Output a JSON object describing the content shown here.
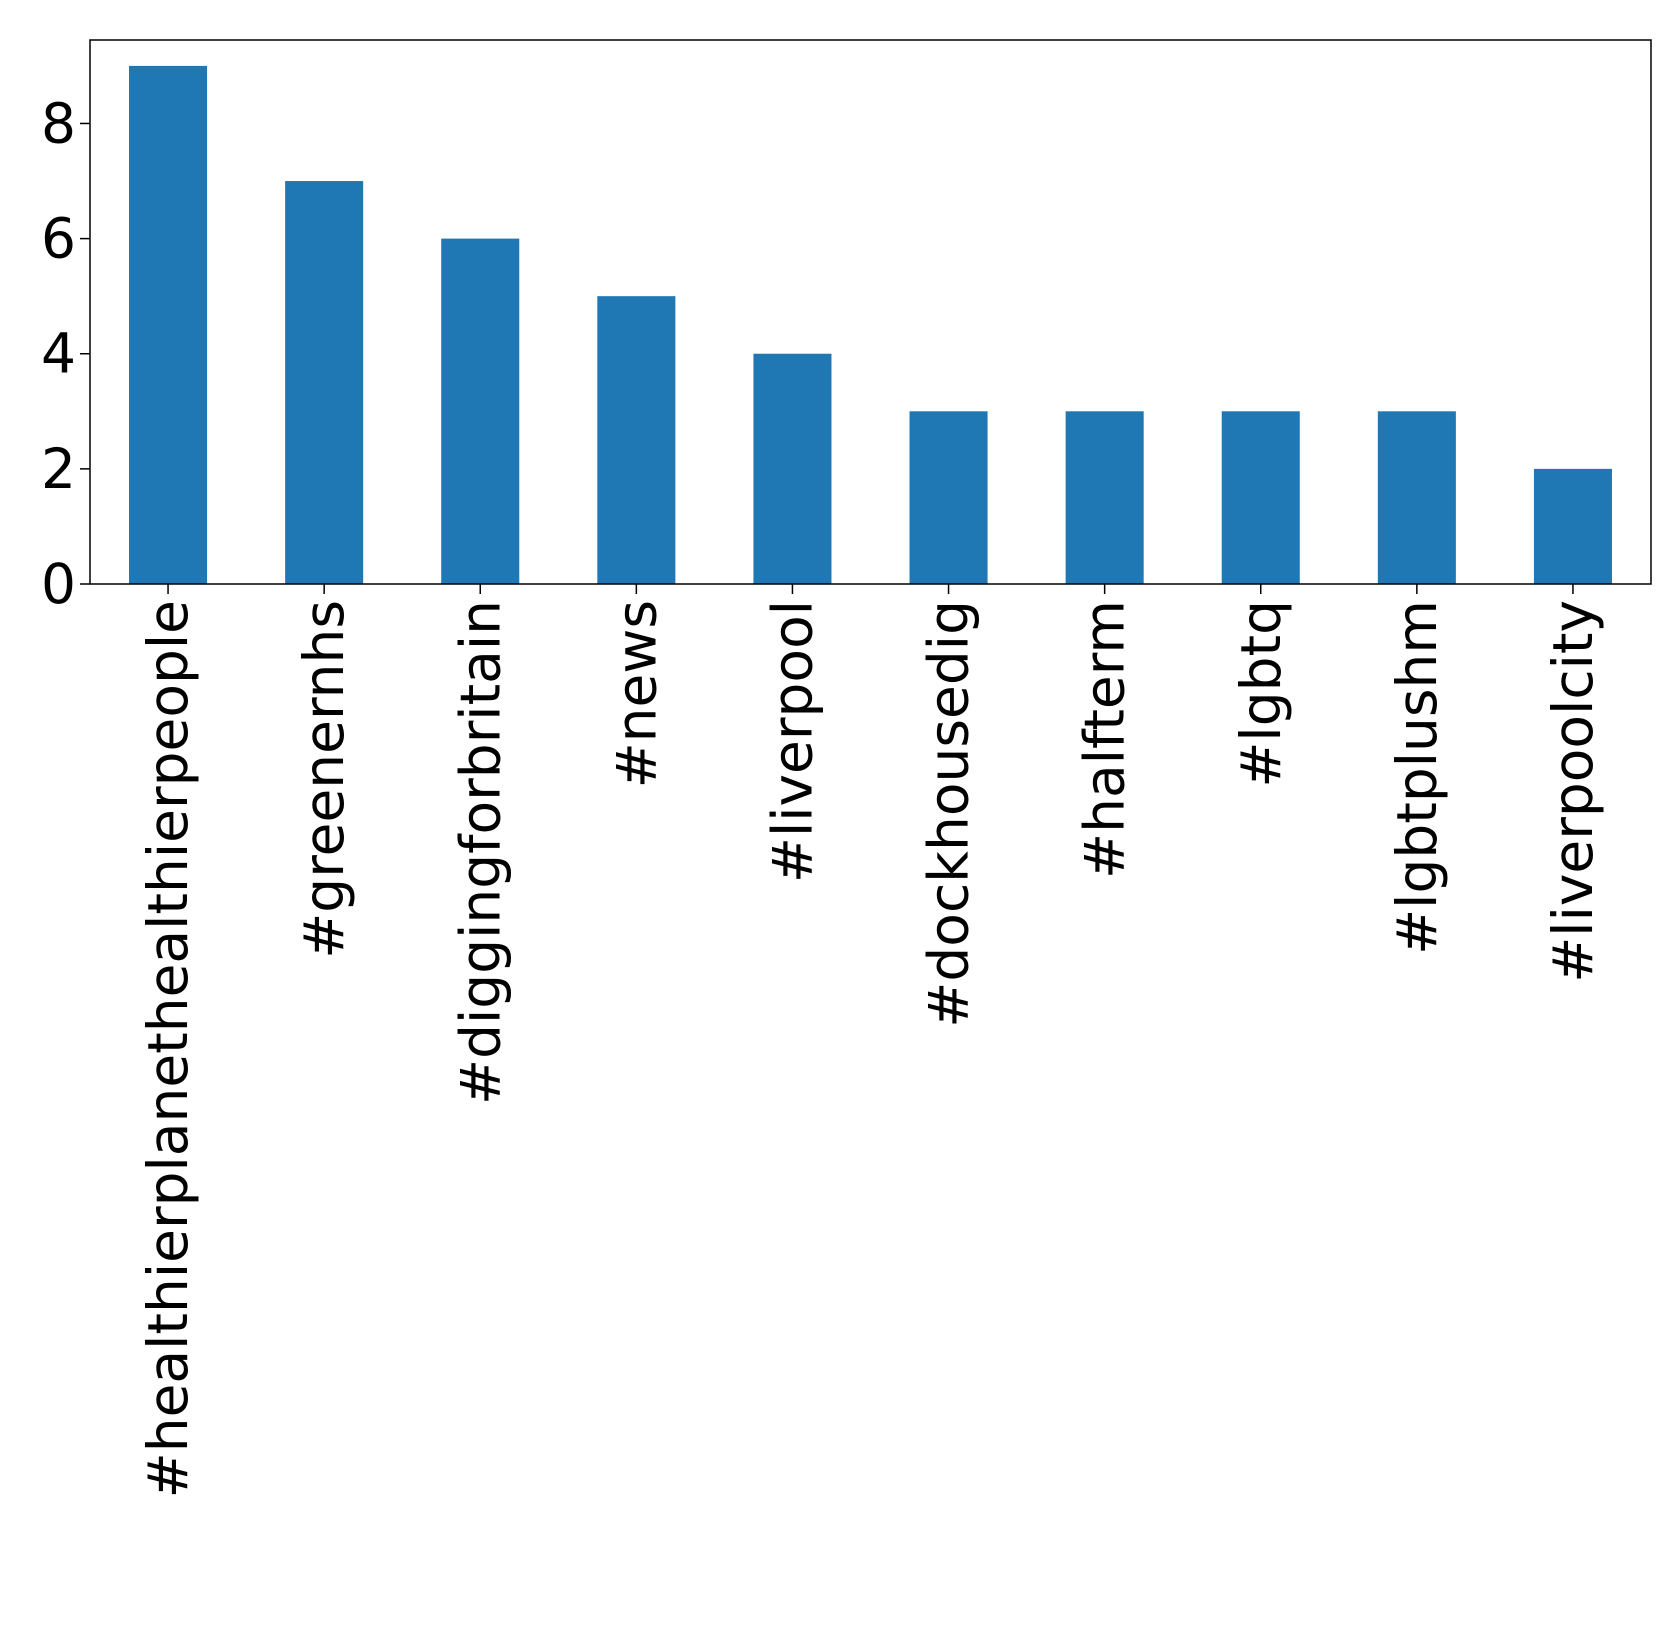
{
  "chart_data": {
    "type": "bar",
    "categories": [
      "#healthierplanethealthierpeople",
      "#greenernhs",
      "#diggingforbritain",
      "#news",
      "#liverpool",
      "#dockhousedig",
      "#halfterm",
      "#lgbtq",
      "#lgbtplushm",
      "#liverpoolcity"
    ],
    "values": [
      9,
      7,
      6,
      5,
      4,
      3,
      3,
      3,
      3,
      2
    ],
    "yticks": [
      "0",
      "2",
      "4",
      "6",
      "8"
    ],
    "ylim": [
      0,
      9.45
    ],
    "grid": false,
    "bar_color": "#1f77b4"
  }
}
